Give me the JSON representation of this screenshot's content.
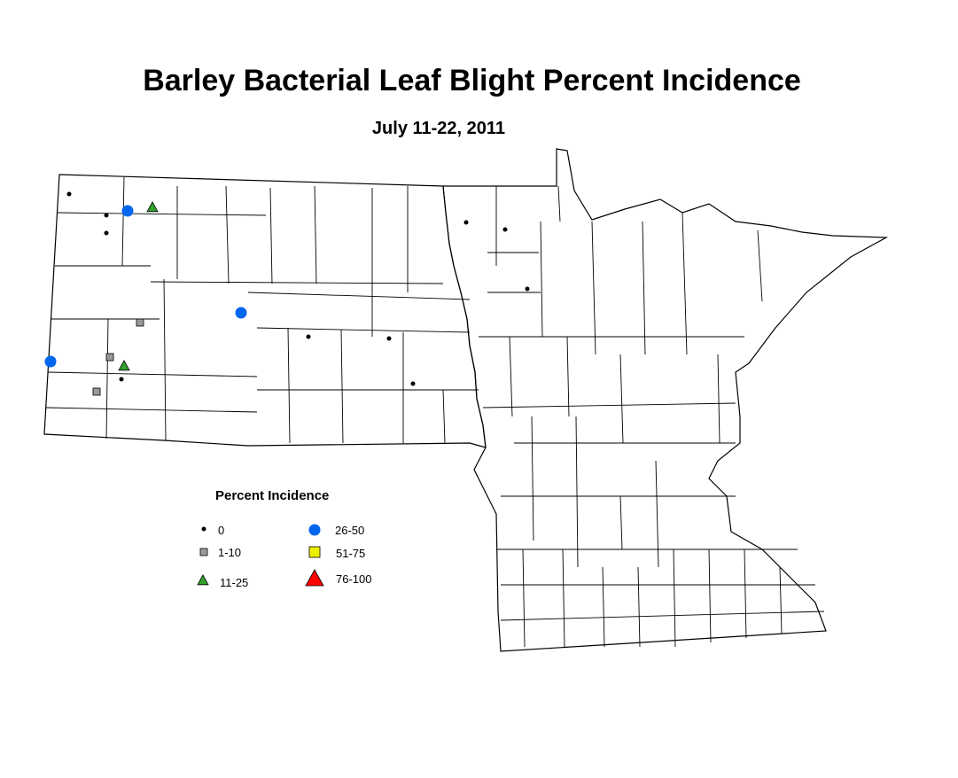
{
  "title": "Barley Bacterial Leaf Blight Percent Incidence",
  "subtitle": "July 11-22, 2011",
  "legend": {
    "title": "Percent Incidence",
    "items": [
      {
        "label": "0",
        "symbol": "dot",
        "color": "#000000"
      },
      {
        "label": "1-10",
        "symbol": "square",
        "color": "#999999"
      },
      {
        "label": "11-25",
        "symbol": "triangle",
        "color": "#33a02c"
      },
      {
        "label": "26-50",
        "symbol": "circle",
        "color": "#0066ee"
      },
      {
        "label": "51-75",
        "symbol": "square",
        "color": "#eeee00"
      },
      {
        "label": "76-100",
        "symbol": "triangle",
        "color": "#ff0000"
      }
    ]
  },
  "observations": [
    {
      "category": "0"
    },
    {
      "category": "0"
    },
    {
      "category": "0"
    },
    {
      "category": "0"
    },
    {
      "category": "0"
    },
    {
      "category": "0"
    },
    {
      "category": "0"
    },
    {
      "category": "0"
    },
    {
      "category": "0"
    },
    {
      "category": "0"
    },
    {
      "category": "1-10"
    },
    {
      "category": "1-10"
    },
    {
      "category": "1-10"
    },
    {
      "category": "11-25"
    },
    {
      "category": "11-25"
    },
    {
      "category": "26-50"
    },
    {
      "category": "26-50"
    },
    {
      "category": "26-50"
    }
  ]
}
